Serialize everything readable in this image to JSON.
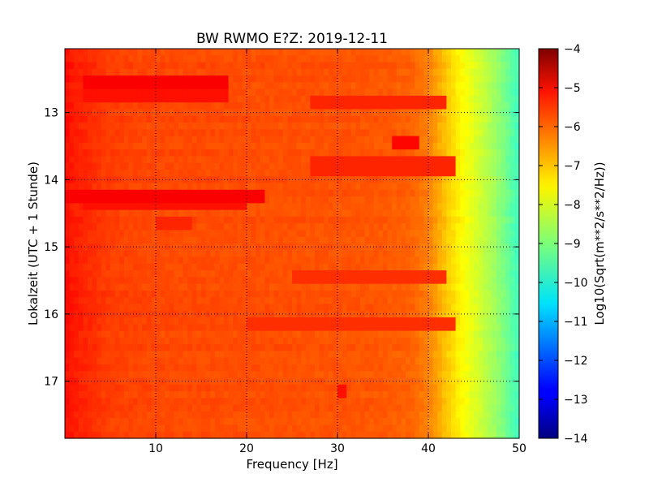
{
  "chart_data": {
    "type": "heatmap",
    "title": "BW RWMO E?Z: 2019-12-11",
    "xlabel": "Frequency [Hz]",
    "ylabel": "Lokalzeit (UTC + 1 Stunde)",
    "xlim": [
      0,
      50
    ],
    "ylim": [
      17.85,
      12.05
    ],
    "x_ticks": [
      10,
      20,
      30,
      40,
      50
    ],
    "x_tick_labels": [
      "10",
      "20",
      "30",
      "40",
      "50"
    ],
    "y_ticks": [
      13,
      14,
      15,
      16,
      17
    ],
    "y_tick_labels": [
      "13",
      "14",
      "15",
      "16",
      "17"
    ],
    "grid": true,
    "colorscale": "jet",
    "colorbar": {
      "label": "Log10(Sqrt(m**2/s**2/Hz))",
      "range": [
        -14,
        -4
      ],
      "ticks": [
        -4,
        -5,
        -6,
        -7,
        -8,
        -9,
        -10,
        -11,
        -12,
        -13,
        -14
      ],
      "tick_labels": [
        "−4",
        "−5",
        "−6",
        "−7",
        "−8",
        "−9",
        "−10",
        "−11",
        "−12",
        "−13",
        "−14"
      ]
    },
    "profile_frequency_hz": [
      0,
      0.5,
      2,
      5,
      10,
      20,
      30,
      35,
      38,
      40,
      42,
      44,
      46,
      48,
      49.5,
      50
    ],
    "profile_value": [
      -5.3,
      -5.45,
      -5.6,
      -5.85,
      -5.95,
      -6.0,
      -6.05,
      -6.1,
      -6.2,
      -6.5,
      -7.2,
      -7.8,
      -8.3,
      -8.9,
      -9.5,
      -9.6
    ],
    "noise_bands": [
      {
        "time": 12.55,
        "f_start": 2,
        "f_end": 18,
        "value": -5.2
      },
      {
        "time": 12.75,
        "f_start": 2,
        "f_end": 18,
        "value": -5.4
      },
      {
        "time": 12.85,
        "f_start": 27,
        "f_end": 42,
        "value": -5.6
      },
      {
        "time": 13.5,
        "f_start": 36,
        "f_end": 39,
        "value": -5.3
      },
      {
        "time": 13.8,
        "f_start": 27,
        "f_end": 43,
        "value": -5.6
      },
      {
        "time": 14.25,
        "f_start": 0,
        "f_end": 22,
        "value": -5.2
      },
      {
        "time": 14.35,
        "f_start": 2,
        "f_end": 20,
        "value": -5.4
      },
      {
        "time": 14.7,
        "f_start": 10,
        "f_end": 14,
        "value": -5.6
      },
      {
        "time": 15.45,
        "f_start": 25,
        "f_end": 42,
        "value": -5.7
      },
      {
        "time": 16.15,
        "f_start": 20,
        "f_end": 43,
        "value": -5.7
      },
      {
        "time": 17.15,
        "f_start": 30,
        "f_end": 31,
        "value": -5.4
      }
    ]
  }
}
